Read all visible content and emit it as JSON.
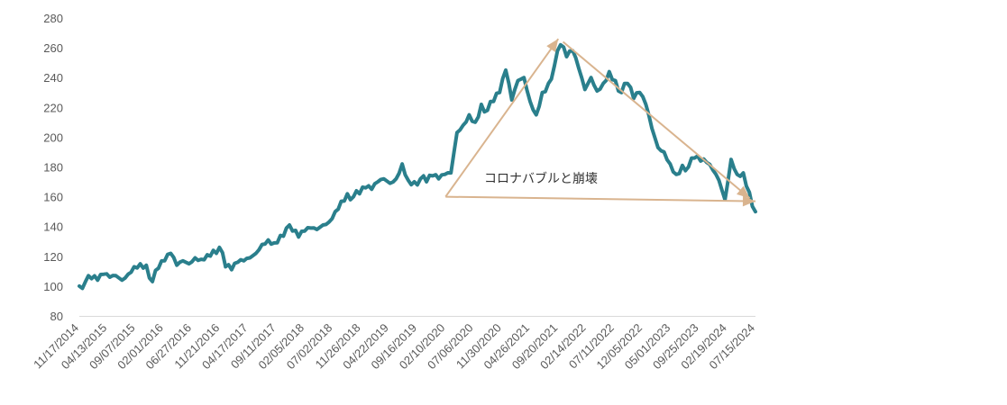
{
  "chart_data": {
    "type": "line",
    "title": "",
    "xlabel": "",
    "ylabel": "",
    "ylim": [
      80,
      280
    ],
    "yticks": [
      "80",
      "100",
      "120",
      "140",
      "160",
      "180",
      "200",
      "220",
      "240",
      "260",
      "280"
    ],
    "xticks": [
      "11/17/2014",
      "04/13/2015",
      "09/07/2015",
      "02/01/2016",
      "06/27/2016",
      "11/21/2016",
      "04/17/2017",
      "09/11/2017",
      "02/05/2018",
      "07/02/2018",
      "11/26/2018",
      "04/22/2019",
      "09/16/2019",
      "02/10/2020",
      "07/06/2020",
      "11/30/2020",
      "04/26/2021",
      "09/20/2021",
      "02/14/2022",
      "07/11/2022",
      "12/05/2022",
      "05/01/2023",
      "09/25/2023",
      "02/19/2024",
      "07/15/2024"
    ],
    "grid": false,
    "series": [
      {
        "color": "#2a7f8c",
        "values": [
          100,
          103,
          105,
          104,
          108,
          106,
          107,
          104,
          108,
          113,
          115,
          114,
          103,
          112,
          117,
          122,
          114,
          117,
          115,
          119,
          118,
          121,
          124,
          126,
          113,
          111,
          116,
          117,
          119,
          122,
          128,
          131,
          129,
          134,
          139,
          137,
          133,
          137,
          139,
          138,
          141,
          143,
          150,
          157,
          162,
          160,
          162,
          166,
          165,
          170,
          172,
          169,
          172,
          182,
          171,
          170,
          172,
          170,
          174,
          172,
          175,
          176,
          203,
          208,
          215,
          210,
          222,
          218,
          224,
          230,
          245,
          225,
          238,
          240,
          224,
          215,
          230,
          236,
          248,
          262,
          254,
          258,
          246,
          232,
          240,
          231,
          236,
          244,
          238,
          230,
          236,
          226,
          230,
          222,
          206,
          193,
          190,
          182,
          175,
          181,
          180,
          186,
          184,
          183,
          178,
          171,
          158,
          185,
          175,
          176,
          163,
          150
        ]
      }
    ],
    "annotation": {
      "text": "コロナバブルと崩壊",
      "color": "#d9b48f",
      "arrows": [
        {
          "from_x": "02/10/2020",
          "from_y": 160,
          "to_x": "09/20/2021",
          "to_y": 266
        },
        {
          "from_x": "02/10/2020",
          "from_y": 160,
          "to_x": "07/15/2024",
          "to_y": 157
        },
        {
          "from_x": "10/15/2021",
          "from_y": 264,
          "to_x": "06/15/2024",
          "to_y": 159
        }
      ]
    }
  }
}
